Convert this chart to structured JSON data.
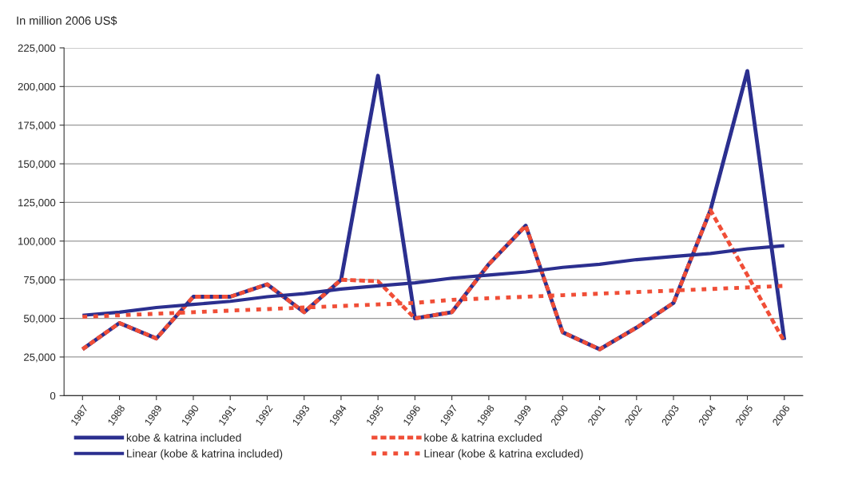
{
  "chart_data": {
    "type": "line",
    "ylabel": "In million 2006 US$",
    "categories": [
      "1987",
      "1988",
      "1989",
      "1990",
      "1991",
      "1992",
      "1993",
      "1994",
      "1995",
      "1996",
      "1997",
      "1998",
      "1999",
      "2000",
      "2001",
      "2002",
      "2003",
      "2004",
      "2005",
      "2006"
    ],
    "series": [
      {
        "name": "kobe & katrina included",
        "color": "#2b2f8f",
        "line_style": "solid",
        "values": [
          30000,
          47000,
          37000,
          64000,
          64000,
          72000,
          54000,
          75000,
          207000,
          50000,
          54000,
          85000,
          110000,
          41000,
          30000,
          44000,
          60000,
          120000,
          210000,
          36000
        ]
      },
      {
        "name": "kobe & katrina excluded",
        "color": "#f04e37",
        "line_style": "dashed",
        "values": [
          30000,
          47000,
          37000,
          64000,
          64000,
          72000,
          54000,
          75000,
          74000,
          50000,
          54000,
          85000,
          110000,
          41000,
          30000,
          44000,
          60000,
          120000,
          78000,
          35000
        ]
      },
      {
        "name": "Linear (kobe & katrina included)",
        "color": "#2b2f8f",
        "line_style": "solid",
        "values": [
          52000,
          54000,
          57000,
          59000,
          61000,
          64000,
          66000,
          69000,
          71000,
          73000,
          76000,
          78000,
          80000,
          83000,
          85000,
          88000,
          90000,
          92000,
          95000,
          97000
        ]
      },
      {
        "name": "Linear (kobe & katrina excluded)",
        "color": "#f04e37",
        "line_style": "dotted",
        "values": [
          51000,
          52000,
          53000,
          54000,
          55000,
          56000,
          57000,
          58000,
          59000,
          60000,
          62000,
          63000,
          64000,
          65000,
          66000,
          67000,
          68000,
          69000,
          70000,
          71000
        ]
      }
    ],
    "ylim": [
      0,
      225000
    ],
    "yticks": [
      0,
      {
        "value": 25000,
        "label": "25,000"
      },
      {
        "value": 50000,
        "label": "50,000"
      },
      {
        "value": 75000,
        "label": "75,000"
      },
      {
        "value": 100000,
        "label": "100,000"
      },
      {
        "value": 125000,
        "label": "125,000"
      },
      {
        "value": 150000,
        "label": "150,000"
      },
      {
        "value": 175000,
        "label": "175,000"
      },
      {
        "value": 200000,
        "label": "200,000"
      },
      {
        "value": 225000,
        "label": "225,000"
      }
    ],
    "grid": "y",
    "legend": "bottom",
    "marker": "none"
  }
}
